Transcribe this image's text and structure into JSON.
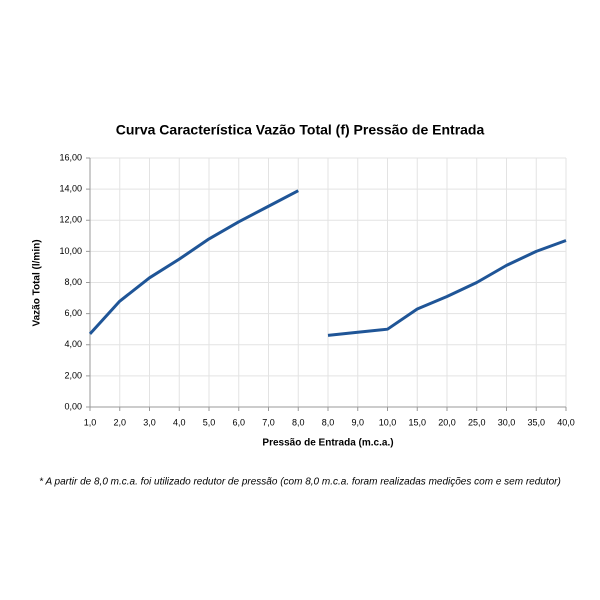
{
  "chart_data": {
    "type": "line",
    "title": "Curva Característica Vazão Total (f) Pressão de Entrada",
    "x_label": "Pressão de Entrada (m.c.a.)",
    "y_label": "Vazão Total (l/min)",
    "note": "* A partir de 8,0 m.c.a. foi utilizado redutor de pressão (com 8,0 m.c.a. foram realizadas medições com e sem redutor)",
    "categories": [
      "1,0",
      "2,0",
      "3,0",
      "4,0",
      "5,0",
      "6,0",
      "7,0",
      "8,0",
      "8,0",
      "9,0",
      "10,0",
      "15,0",
      "20,0",
      "25,0",
      "30,0",
      "35,0",
      "40,0"
    ],
    "series": [
      {
        "color": "#1f5597",
        "values": [
          4.7,
          6.8,
          8.3,
          9.5,
          10.8,
          11.9,
          12.9,
          13.9,
          null,
          null,
          null,
          null,
          null,
          null,
          null,
          null,
          null
        ]
      },
      {
        "color": "#1f5597",
        "values": [
          null,
          null,
          null,
          null,
          null,
          null,
          null,
          null,
          4.6,
          4.8,
          5.0,
          6.3,
          7.1,
          8.0,
          9.1,
          10.0,
          10.7
        ]
      }
    ],
    "ylim": [
      0,
      16
    ],
    "yticks": [
      {
        "value": 0,
        "label": "0,00"
      },
      {
        "value": 2,
        "label": "2,00"
      },
      {
        "value": 4,
        "label": "4,00"
      },
      {
        "value": 6,
        "label": "6,00"
      },
      {
        "value": 8,
        "label": "8,00"
      },
      {
        "value": 10,
        "label": "10,00"
      },
      {
        "value": 12,
        "label": "12,00"
      },
      {
        "value": 14,
        "label": "14,00"
      },
      {
        "value": 16,
        "label": "16,00"
      }
    ],
    "grid": true
  }
}
